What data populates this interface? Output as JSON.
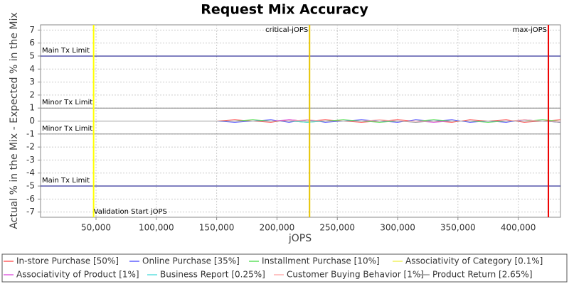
{
  "chart_data": {
    "type": "line",
    "title": "Request Mix Accuracy",
    "x_label": "jOPS",
    "y_label": "Actual % in the Mix - Expected % in the Mix",
    "xlim": [
      4000,
      435000
    ],
    "ylim": [
      -7.4,
      7.4
    ],
    "xticks": [
      {
        "value": 50000,
        "label": "50,000"
      },
      {
        "value": 100000,
        "label": "100,000"
      },
      {
        "value": 150000,
        "label": "150,000"
      },
      {
        "value": 200000,
        "label": "200,000"
      },
      {
        "value": 250000,
        "label": "250,000"
      },
      {
        "value": 300000,
        "label": "300,000"
      },
      {
        "value": 350000,
        "label": "350,000"
      },
      {
        "value": 400000,
        "label": "400,000"
      }
    ],
    "yticks": [
      -7,
      -6,
      -5,
      -4,
      -3,
      -2,
      -1,
      0,
      1,
      2,
      3,
      4,
      5,
      6,
      7
    ],
    "grid": true,
    "x": [
      5000,
      130000,
      150000,
      165000,
      180000,
      195000,
      210000,
      225000,
      240000,
      255000,
      270000,
      285000,
      300000,
      315000,
      330000,
      345000,
      360000,
      375000,
      390000,
      405000,
      420000,
      435000
    ],
    "series": [
      {
        "name": "In-store Purchase [50%]",
        "color": "#ff6060",
        "values": [
          0,
          0,
          0,
          0.1,
          0,
          -0.1,
          0.1,
          0,
          0.1,
          0,
          -0.1,
          0,
          0.1,
          0,
          0,
          -0.1,
          0.1,
          0,
          0.1,
          -0.1,
          0,
          0.1
        ]
      },
      {
        "name": "Online Purchase [35%]",
        "color": "#6060ff",
        "values": [
          0,
          0,
          0,
          -0.1,
          0,
          0.1,
          -0.1,
          0.1,
          -0.1,
          0,
          0.1,
          0,
          -0.1,
          0.1,
          0,
          0.1,
          -0.1,
          0,
          -0.1,
          0.1,
          0,
          -0.1
        ]
      },
      {
        "name": "Installment Purchase [10%]",
        "color": "#60e060",
        "values": [
          0,
          0,
          0,
          0,
          0.1,
          0,
          0,
          -0.1,
          0,
          0.1,
          0,
          -0.1,
          0,
          0,
          0.1,
          0,
          0,
          -0.1,
          0,
          0,
          0.1,
          0
        ]
      },
      {
        "name": "Associativity of Category [0.1%]",
        "color": "#f0f060",
        "values": [
          0,
          0,
          0,
          0,
          0,
          0,
          0,
          0,
          0,
          0,
          0,
          0,
          0,
          0,
          0,
          0,
          0,
          0,
          0,
          0,
          0,
          0
        ]
      },
      {
        "name": "Associativity of Product [1%]",
        "color": "#e060e0",
        "values": [
          0,
          0,
          0,
          0,
          0,
          0,
          0.1,
          0,
          0,
          0,
          0,
          0,
          0,
          0,
          -0.1,
          0,
          0,
          0,
          0,
          0,
          0,
          0
        ]
      },
      {
        "name": "Business Report [0.25%]",
        "color": "#60e0e0",
        "values": [
          0,
          0,
          0,
          0,
          0,
          0,
          0,
          -0.1,
          0,
          0,
          0,
          0,
          0,
          0,
          0,
          0,
          0,
          0,
          0,
          0,
          0,
          0
        ]
      },
      {
        "name": "Customer Buying Behavior [1%]",
        "color": "#ffb0b0",
        "values": [
          0,
          0,
          0,
          0,
          0,
          0,
          0,
          0.1,
          0,
          0,
          0,
          0.1,
          0,
          0,
          0,
          0,
          0,
          0,
          0,
          0.1,
          0,
          0
        ]
      },
      {
        "name": "Product Return [2.65%]",
        "color": "#999999",
        "values": [
          0,
          0,
          0,
          0,
          0,
          0,
          0,
          0,
          0,
          0,
          0,
          0,
          0,
          -0.1,
          0,
          0,
          0,
          0,
          0,
          0,
          0,
          -0.1
        ]
      }
    ],
    "vertical_markers": [
      {
        "label": "Validation Start jOPS",
        "value": 48000,
        "color": "#ffff00"
      },
      {
        "label": "critical-jOPS",
        "value": 227000,
        "color": "#e6c300"
      },
      {
        "label": "max-jOPS",
        "value": 425000,
        "color": "#ee0000"
      }
    ],
    "horizontal_markers": [
      {
        "label": "Main Tx Limit",
        "value": 5,
        "color": "#000080"
      },
      {
        "label": "Minor Tx Limit",
        "value": 1,
        "color": "#808080"
      },
      {
        "label": "Minor Tx Limit",
        "value": -1,
        "color": "#808080"
      },
      {
        "label": "Main Tx Limit",
        "value": -5,
        "color": "#000080"
      }
    ]
  }
}
